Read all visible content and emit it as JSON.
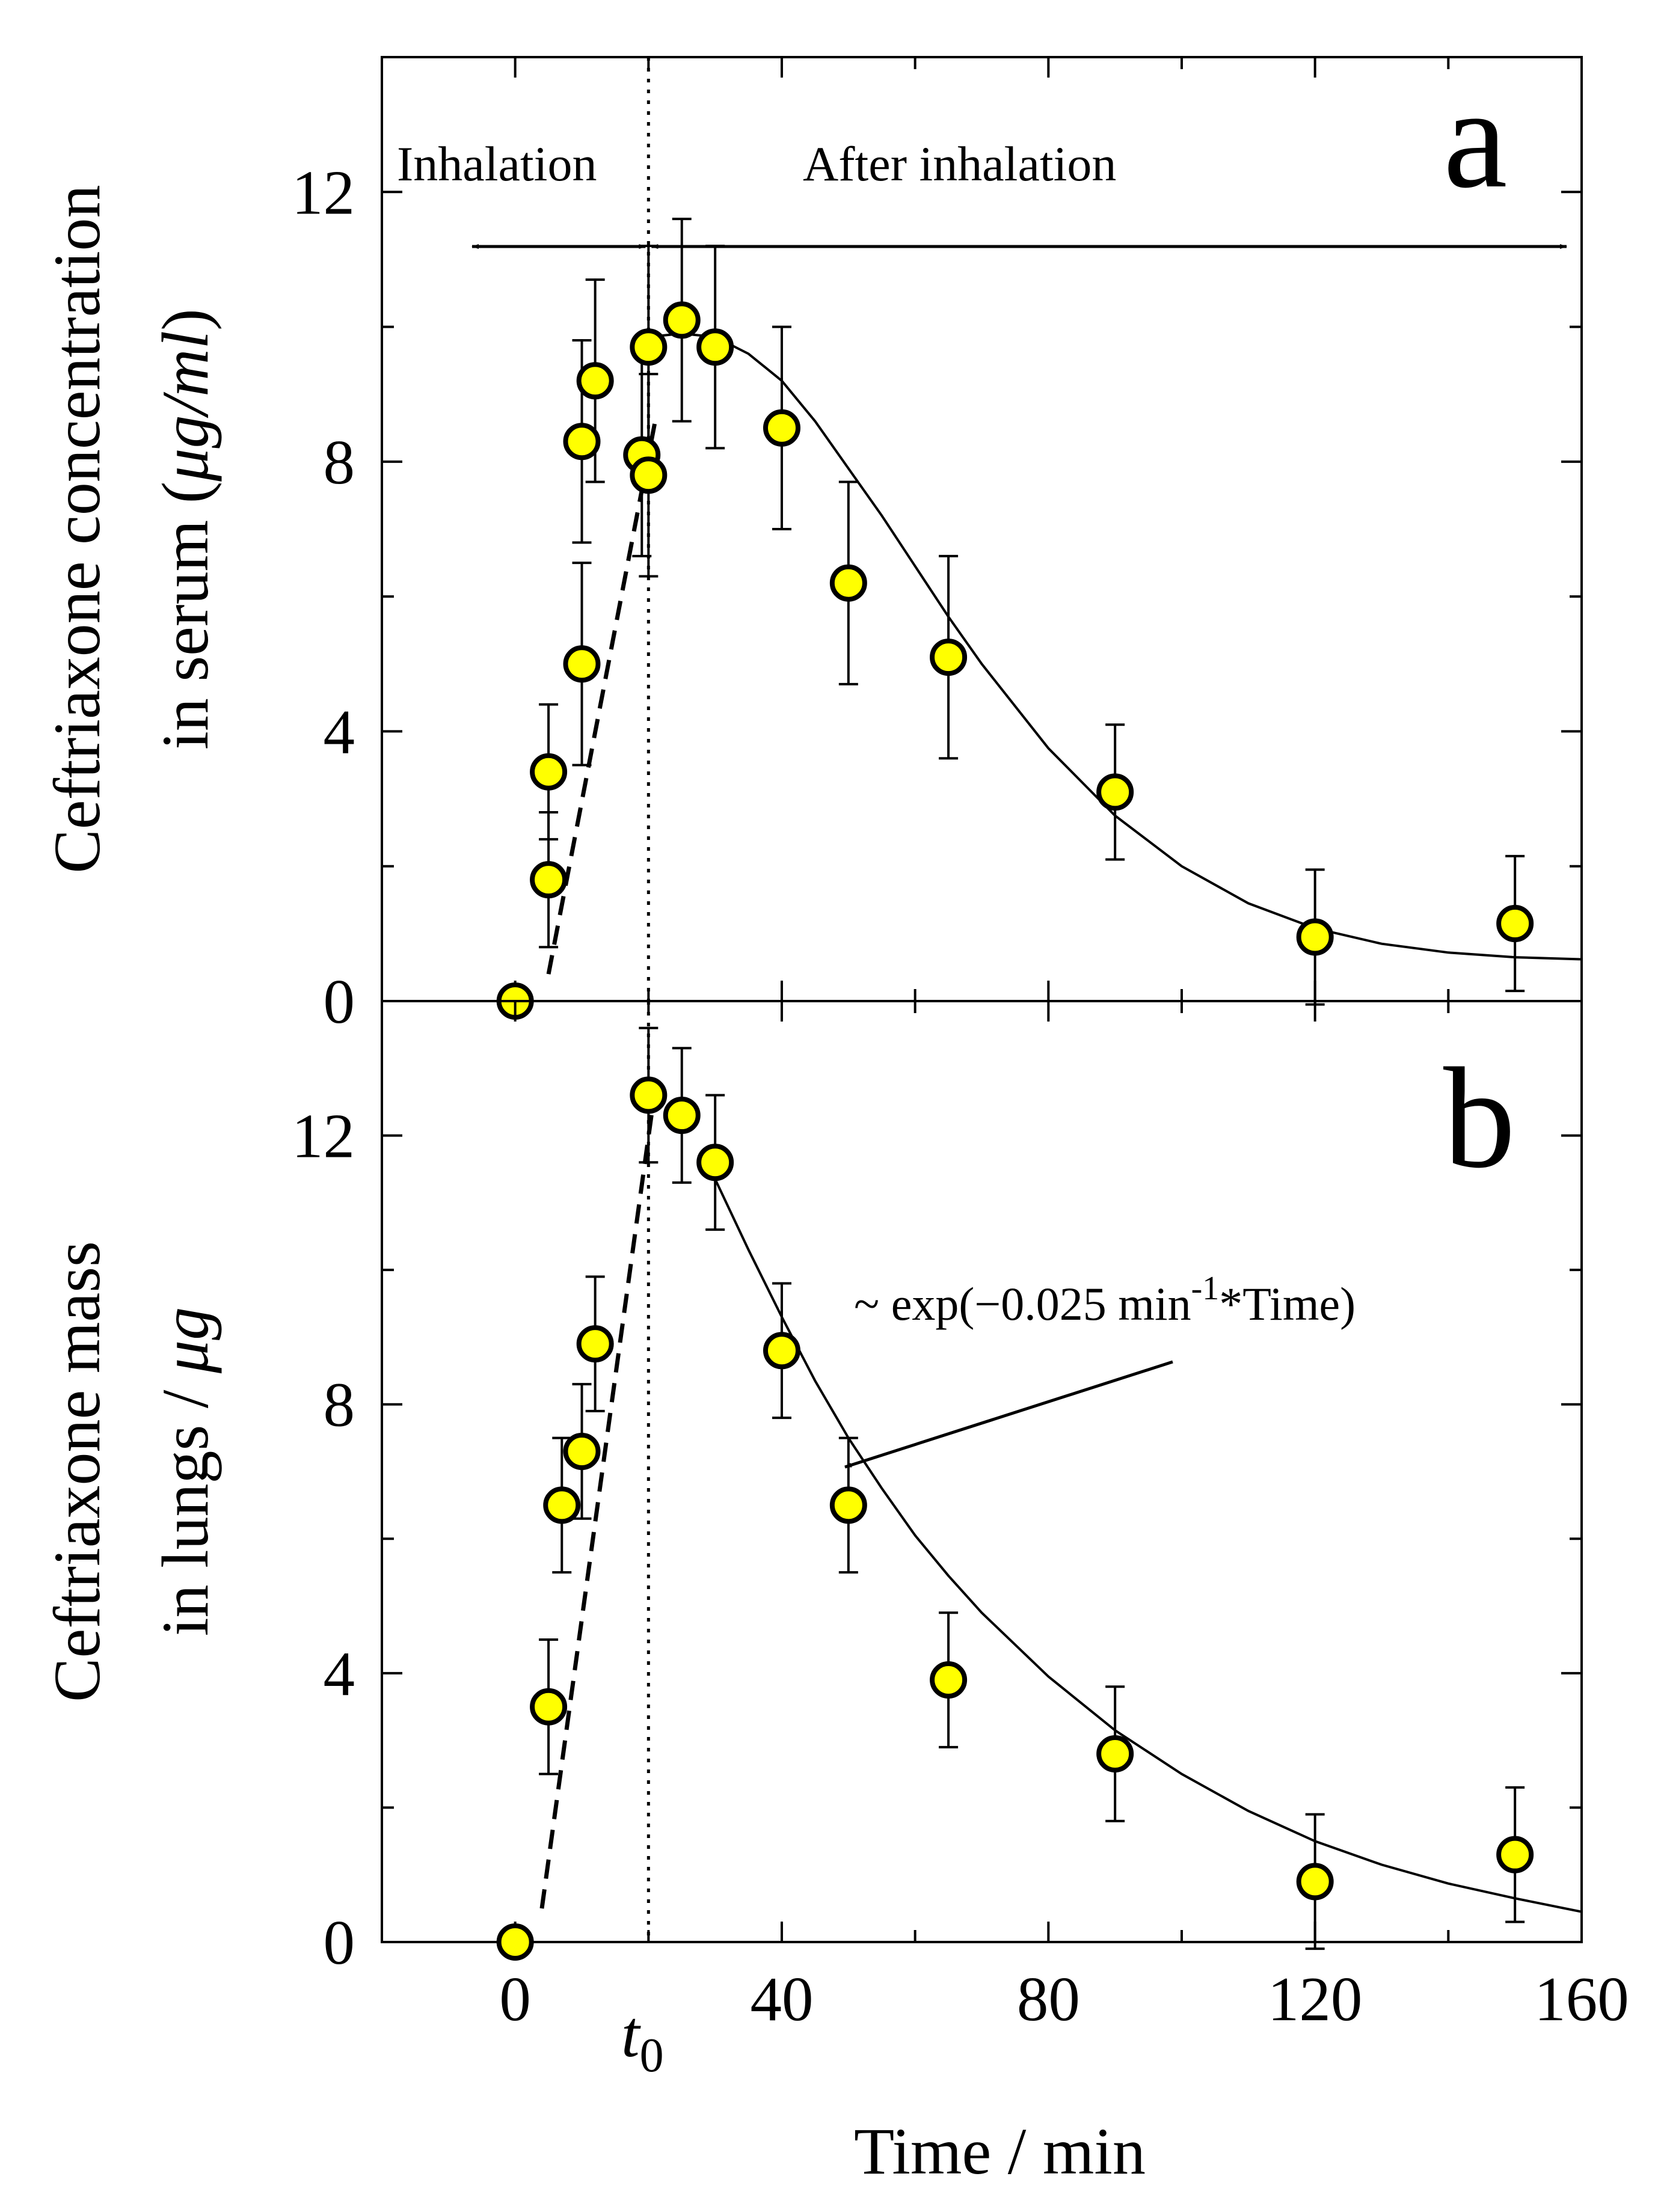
{
  "chart_data": [
    {
      "panel": "a",
      "type": "scatter",
      "ylabel_line1": "Ceftriaxone concentration",
      "ylabel_line2_prefix": "in serum (",
      "ylabel_unit": "μg/ml",
      "ylabel_line2_suffix": ")",
      "xlim": [
        -20,
        160
      ],
      "ylim": [
        0,
        14
      ],
      "yticks": [
        "0",
        "4",
        "8",
        "12"
      ],
      "ytick_values": [
        0,
        4,
        8,
        12
      ],
      "phase_labels": {
        "inhalation": "Inhalation",
        "after": "After inhalation"
      },
      "points": [
        {
          "x": 0,
          "y": 0,
          "err": 0
        },
        {
          "x": 5,
          "y": 1.8,
          "err": 1.0
        },
        {
          "x": 5,
          "y": 3.4,
          "err": 1.0
        },
        {
          "x": 10,
          "y": 5.0,
          "err": 1.5
        },
        {
          "x": 10,
          "y": 8.3,
          "err": 1.5
        },
        {
          "x": 12,
          "y": 9.2,
          "err": 1.5
        },
        {
          "x": 19,
          "y": 8.1,
          "err": 1.5
        },
        {
          "x": 20,
          "y": 7.8,
          "err": 1.5
        },
        {
          "x": 20,
          "y": 9.7,
          "err": 1.5
        },
        {
          "x": 25,
          "y": 10.1,
          "err": 1.5
        },
        {
          "x": 30,
          "y": 9.7,
          "err": 1.5
        },
        {
          "x": 40,
          "y": 8.5,
          "err": 1.5
        },
        {
          "x": 50,
          "y": 6.2,
          "err": 1.5
        },
        {
          "x": 65,
          "y": 5.1,
          "err": 1.5
        },
        {
          "x": 90,
          "y": 3.1,
          "err": 1.0
        },
        {
          "x": 120,
          "y": 0.95,
          "err": 1.0
        },
        {
          "x": 150,
          "y": 1.15,
          "err": 1.0
        }
      ],
      "dashed_fit": [
        [
          5,
          0.4
        ],
        [
          21,
          8.6
        ]
      ],
      "solid_fit": [
        [
          20,
          9.85
        ],
        [
          25,
          9.9
        ],
        [
          30,
          9.85
        ],
        [
          35,
          9.6
        ],
        [
          40,
          9.2
        ],
        [
          45,
          8.6
        ],
        [
          50,
          7.9
        ],
        [
          55,
          7.2
        ],
        [
          60,
          6.45
        ],
        [
          65,
          5.7
        ],
        [
          70,
          5.0
        ],
        [
          80,
          3.75
        ],
        [
          90,
          2.75
        ],
        [
          100,
          2.0
        ],
        [
          110,
          1.45
        ],
        [
          120,
          1.08
        ],
        [
          130,
          0.85
        ],
        [
          140,
          0.72
        ],
        [
          150,
          0.65
        ],
        [
          160,
          0.62
        ]
      ]
    },
    {
      "panel": "b",
      "type": "scatter",
      "ylabel_line1": "Ceftriaxone mass",
      "ylabel_line2_prefix": "in lungs / ",
      "ylabel_unit": "μg",
      "ylabel_line2_suffix": "",
      "xlim": [
        -20,
        160
      ],
      "ylim": [
        0,
        14
      ],
      "yticks": [
        "0",
        "4",
        "8",
        "12"
      ],
      "ytick_values": [
        0,
        4,
        8,
        12
      ],
      "xticks": [
        "0",
        "40",
        "80",
        "120",
        "160"
      ],
      "xtick_values": [
        0,
        40,
        80,
        120,
        160
      ],
      "xlabel": "Time / min",
      "t0_label": "t",
      "t0_sub": "0",
      "t0_value": 20,
      "annotation_prefix": "~ exp(−0.025 min",
      "annotation_sup": "-1",
      "annotation_suffix": "*Time)",
      "points": [
        {
          "x": 0,
          "y": 0,
          "err": 0
        },
        {
          "x": 5,
          "y": 3.5,
          "err": 1.0
        },
        {
          "x": 7,
          "y": 6.5,
          "err": 1.0
        },
        {
          "x": 10,
          "y": 7.3,
          "err": 1.0
        },
        {
          "x": 12,
          "y": 8.9,
          "err": 1.0
        },
        {
          "x": 20,
          "y": 12.6,
          "err": 1.0
        },
        {
          "x": 25,
          "y": 12.3,
          "err": 1.0
        },
        {
          "x": 30,
          "y": 11.6,
          "err": 1.0
        },
        {
          "x": 40,
          "y": 8.8,
          "err": 1.0
        },
        {
          "x": 50,
          "y": 6.5,
          "err": 1.0
        },
        {
          "x": 65,
          "y": 3.9,
          "err": 1.0
        },
        {
          "x": 90,
          "y": 2.8,
          "err": 1.0
        },
        {
          "x": 120,
          "y": 0.9,
          "err": 1.0
        },
        {
          "x": 150,
          "y": 1.3,
          "err": 1.0
        }
      ],
      "dashed_fit": [
        [
          4,
          0.5
        ],
        [
          21,
          12.7
        ]
      ],
      "solid_fit": [
        [
          30,
          11.35
        ],
        [
          35,
          10.3
        ],
        [
          40,
          9.3
        ],
        [
          45,
          8.35
        ],
        [
          50,
          7.5
        ],
        [
          55,
          6.75
        ],
        [
          60,
          6.05
        ],
        [
          65,
          5.45
        ],
        [
          70,
          4.9
        ],
        [
          80,
          3.95
        ],
        [
          90,
          3.15
        ],
        [
          100,
          2.5
        ],
        [
          110,
          1.95
        ],
        [
          120,
          1.5
        ],
        [
          130,
          1.15
        ],
        [
          140,
          0.87
        ],
        [
          150,
          0.65
        ],
        [
          160,
          0.45
        ]
      ]
    }
  ]
}
